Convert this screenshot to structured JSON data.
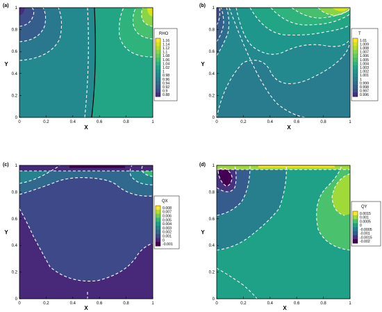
{
  "figure": {
    "colors": {
      "background": "#ffffff",
      "axis": "#000000",
      "contour_line": "#ffffff"
    }
  },
  "chart_data": [
    {
      "panel_label": "(a)",
      "type": "heatmap",
      "xlabel": "X",
      "ylabel": "Y",
      "xlim": [
        0,
        1
      ],
      "ylim": [
        0,
        1
      ],
      "x_ticks": [
        "0",
        "0.2",
        "0.4",
        "0.6",
        "0.8",
        "1"
      ],
      "y_ticks": [
        "0",
        "0.2",
        "0.4",
        "0.6",
        "0.8",
        "1"
      ],
      "legend_title": "RHO",
      "legend_levels": [
        "1.16",
        "1.14",
        "1.12",
        "1.1",
        "1.08",
        "1.06",
        "1.04",
        "1.02",
        "1",
        "0.98",
        "0.96",
        "0.94",
        "0.92",
        "0.9",
        "0.88"
      ],
      "legend_colors": [
        "#fde725",
        "#d8e219",
        "#b0dd2f",
        "#89d548",
        "#65cb5e",
        "#46c06f",
        "#2eb37c",
        "#21a585",
        "#1f968b",
        "#23898e",
        "#297b8e",
        "#2e6d8e",
        "#355e8d",
        "#3d4e8a",
        "#472d7b"
      ],
      "legend_position": "right",
      "field_description": "near-uniform density with low values in the top-left corner and high values in the top-right corner"
    },
    {
      "panel_label": "(b)",
      "type": "heatmap",
      "xlabel": "X",
      "ylabel": "Y",
      "xlim": [
        0,
        1
      ],
      "ylim": [
        0,
        1
      ],
      "x_ticks": [
        "0",
        "0.2",
        "0.4",
        "0.6",
        "0.8",
        "1"
      ],
      "y_ticks": [
        "0",
        "0.2",
        "0.4",
        "0.6",
        "0.8",
        "1"
      ],
      "legend_title": "T",
      "legend_levels": [
        "1.01",
        "1.009",
        "1.008",
        "1.007",
        "1.006",
        "1.005",
        "1.004",
        "1.003",
        "1.002",
        "1.001",
        "1",
        "0.999",
        "0.998",
        "0.997",
        "0.996"
      ],
      "legend_colors": [
        "#fde725",
        "#d8e219",
        "#b0dd2f",
        "#89d548",
        "#65cb5e",
        "#46c06f",
        "#2eb37c",
        "#21a585",
        "#1f968b",
        "#23898e",
        "#297b8e",
        "#2e6d8e",
        "#355e8d",
        "#3d4e8a",
        "#472d7b"
      ],
      "legend_position": "right",
      "field_description": "temperature highest near the top-right corner, lowest near the top-left corner"
    },
    {
      "panel_label": "(c)",
      "type": "heatmap",
      "xlabel": "X",
      "ylabel": "Y",
      "xlim": [
        0,
        1
      ],
      "ylim": [
        0,
        1
      ],
      "x_ticks": [
        "0",
        "0.2",
        "0.4",
        "0.6",
        "0.8",
        "1"
      ],
      "y_ticks": [
        "0",
        "0.2",
        "0.4",
        "0.6",
        "0.8",
        "1"
      ],
      "legend_title": "QX",
      "legend_levels": [
        "0.008",
        "0.007",
        "0.006",
        "0.005",
        "0.004",
        "0.003",
        "0.002",
        "0.001",
        "0",
        "-0.001"
      ],
      "legend_colors": [
        "#fde725",
        "#b5de2b",
        "#6ece58",
        "#35b779",
        "#1f9e89",
        "#26828e",
        "#31688e",
        "#3e4989",
        "#482878",
        "#440154"
      ],
      "legend_position": "right",
      "field_description": "strong positive heat flux along the top lid, slightly negative region in the lower half"
    },
    {
      "panel_label": "(d)",
      "type": "heatmap",
      "xlabel": "X",
      "ylabel": "Y",
      "xlim": [
        0,
        1
      ],
      "ylim": [
        0,
        1
      ],
      "x_ticks": [
        "0",
        "0.2",
        "0.4",
        "0.6",
        "0.8",
        "1"
      ],
      "y_ticks": [
        "0",
        "0.2",
        "0.4",
        "0.6",
        "0.8",
        "1"
      ],
      "legend_title": "QY",
      "legend_levels": [
        "0.0015",
        "0.001",
        "0.0005",
        "0",
        "-0.0005",
        "-0.001",
        "-0.0015",
        "-0.002"
      ],
      "legend_colors": [
        "#fde725",
        "#a0da39",
        "#4ac16d",
        "#1fa187",
        "#277f8e",
        "#365c8d",
        "#46327e",
        "#440154"
      ],
      "legend_position": "right",
      "field_description": "negative lobe near top-left corner, positive lobe near top-right corner"
    }
  ]
}
